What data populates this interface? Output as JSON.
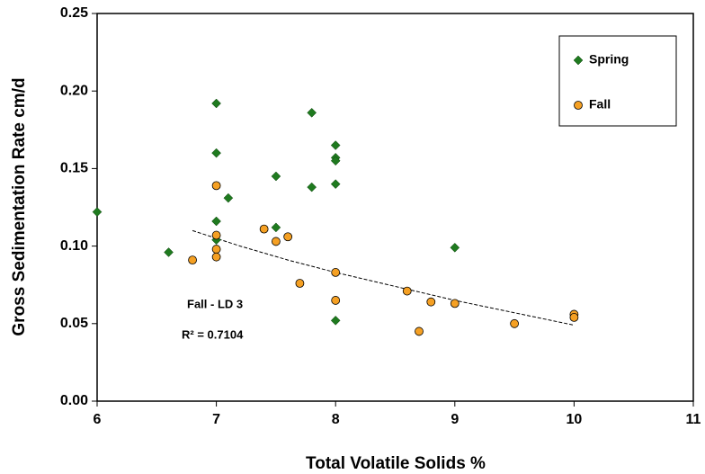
{
  "chart_data": {
    "type": "scatter",
    "xlabel": "Total Volatile Solids %",
    "ylabel": "Gross Sedimentation Rate cm/d",
    "xlim": [
      6,
      11
    ],
    "xticks": [
      6,
      7,
      8,
      9,
      10,
      11
    ],
    "ylim": [
      0,
      0.25
    ],
    "yticks": [
      {
        "value": 0,
        "label": "0.00"
      },
      {
        "value": 0.05,
        "label": "0.05"
      },
      {
        "value": 0.1,
        "label": "0.10"
      },
      {
        "value": 0.15,
        "label": "0.15"
      },
      {
        "value": 0.2,
        "label": "0.20"
      },
      {
        "value": 0.25,
        "label": "0.25"
      }
    ],
    "legend": "upper right",
    "series": [
      {
        "name": "Spring",
        "color": "#1f7a1f",
        "marker": "diamond",
        "x": [
          6.0,
          6.6,
          7.0,
          7.0,
          7.0,
          7.0,
          7.1,
          7.5,
          7.5,
          7.8,
          7.8,
          8.0,
          8.0,
          8.0,
          8.0,
          8.0,
          9.0
        ],
        "values": [
          0.122,
          0.096,
          0.192,
          0.16,
          0.116,
          0.104,
          0.131,
          0.145,
          0.112,
          0.186,
          0.138,
          0.165,
          0.157,
          0.155,
          0.14,
          0.052,
          0.099
        ]
      },
      {
        "name": "Fall",
        "color": "#f5a023",
        "marker": "circle",
        "x": [
          6.8,
          7.0,
          7.0,
          7.0,
          7.0,
          7.4,
          7.5,
          7.6,
          7.7,
          8.0,
          8.0,
          8.6,
          8.7,
          8.8,
          9.0,
          9.5,
          10.0,
          10.0
        ],
        "values": [
          0.091,
          0.139,
          0.107,
          0.098,
          0.093,
          0.111,
          0.103,
          0.106,
          0.076,
          0.083,
          0.065,
          0.071,
          0.045,
          0.064,
          0.063,
          0.05,
          0.056,
          0.054
        ]
      }
    ],
    "trendline": {
      "x": [
        6.8,
        7.2,
        7.6,
        8.0,
        8.5,
        9.0,
        9.5,
        10.0
      ],
      "values": [
        0.11,
        0.1,
        0.091,
        0.083,
        0.074,
        0.065,
        0.057,
        0.049
      ]
    },
    "annotations": [
      "Fall - LD 3",
      "R² = 0.7104"
    ]
  }
}
